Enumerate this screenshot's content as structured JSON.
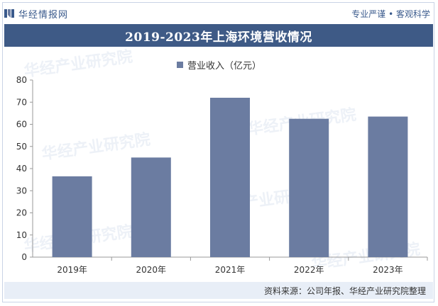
{
  "header": {
    "brand": "华经情报网",
    "slogan": "专业严谨 • 客观科学",
    "watermark": "华经产业研究院"
  },
  "footer": {
    "source": "资料来源：公司年报、华经产业研究院整理"
  },
  "colors": {
    "bar": "#6b7ca1",
    "title_bg": "#3e5a86",
    "accent": "#3a5a8c"
  },
  "chart_data": {
    "type": "bar",
    "title": "2019-2023年上海环境营收情况",
    "categories": [
      "2019年",
      "2020年",
      "2021年",
      "2022年",
      "2023年"
    ],
    "series": [
      {
        "name": "营业收入（亿元）",
        "values": [
          36.5,
          45,
          72,
          62.5,
          63.5
        ]
      }
    ],
    "ylim": [
      0,
      80
    ],
    "yticks": [
      0,
      10,
      20,
      30,
      40,
      50,
      60,
      70,
      80
    ],
    "xlabel": "",
    "ylabel": "",
    "legend": "top-center",
    "grid": false
  }
}
